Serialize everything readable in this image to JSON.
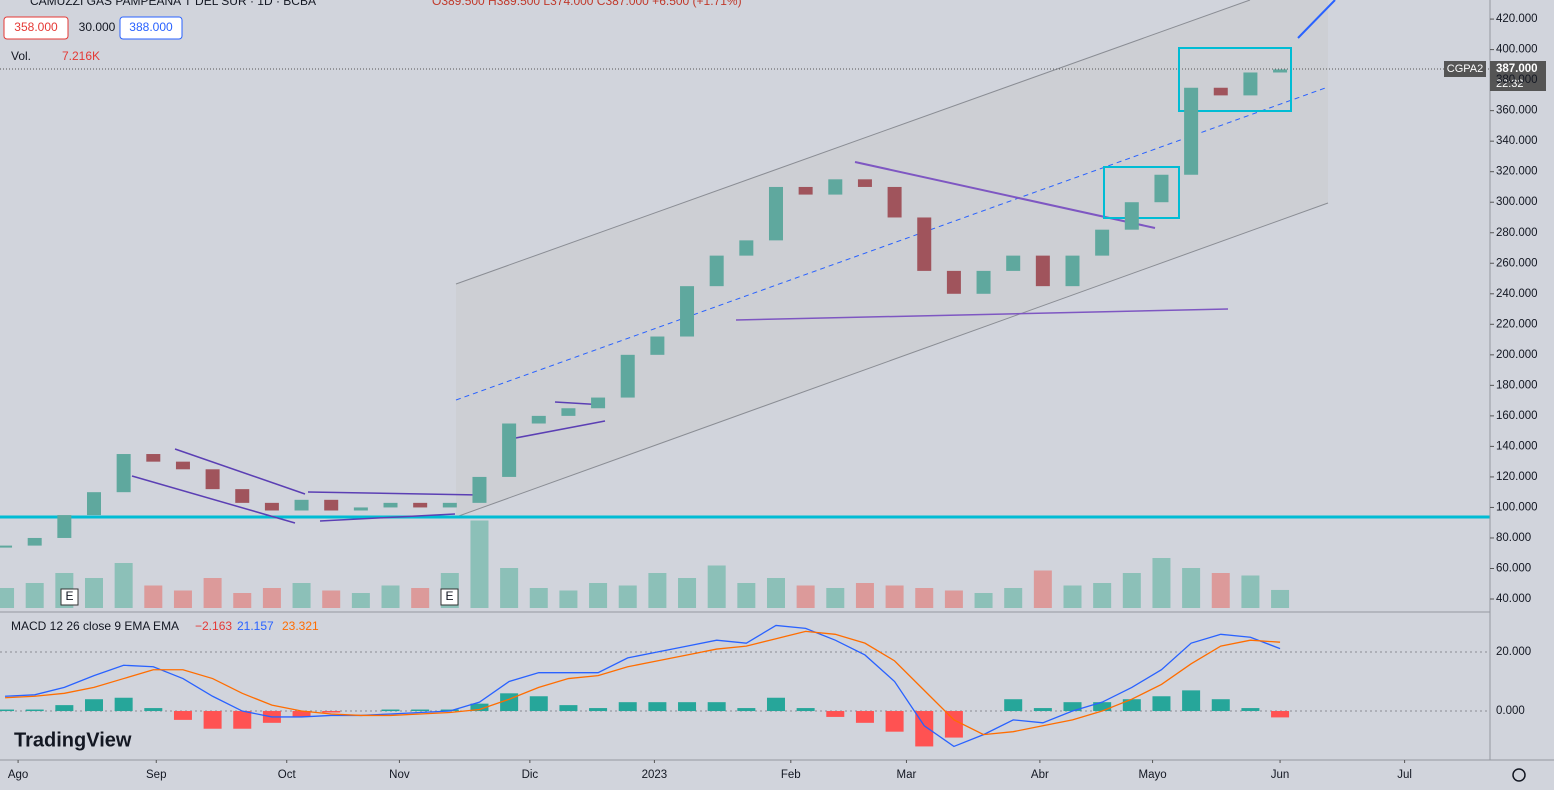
{
  "header": {
    "symbol": "CAMUZZI GAS PAMPEANA 'I' DEL SUR · 1D · BCBA",
    "ohlc": "O389.500 H389.500 L374.000 C387.000 +6.500 (+1.71%)",
    "bid": "358.000",
    "spread": "30.000",
    "ask": "388.000",
    "vol_title": "Vol.",
    "vol_value": "7.216K"
  },
  "price_tag": {
    "ticker": "CGPA2",
    "price": "387.000",
    "time": "22:32"
  },
  "macd_legend": {
    "title": "MACD 12 26 close 9 EMA EMA",
    "hist": "−2.163",
    "macd": "21.157",
    "signal": "23.321"
  },
  "earnings_markers": [
    "E",
    "E"
  ],
  "brand": "TradingView",
  "chart_data": {
    "type": "candlestick",
    "x": [
      0,
      1,
      2,
      3,
      4,
      5,
      6,
      7,
      8,
      9,
      10,
      11,
      12,
      13,
      14,
      15,
      16,
      17,
      18,
      19,
      20,
      21,
      22,
      23,
      24,
      25,
      26,
      27,
      28,
      29,
      30,
      31,
      32,
      33,
      34,
      35,
      36,
      37,
      38,
      39,
      40,
      41,
      42,
      43
    ],
    "xlim": [
      -0.17,
      50.08
    ],
    "xticks": [
      {
        "value": 0.44,
        "label": "Ago"
      },
      {
        "value": 5.1,
        "label": "Sep"
      },
      {
        "value": 9.5,
        "label": "Oct"
      },
      {
        "value": 13.3,
        "label": "Nov"
      },
      {
        "value": 17.7,
        "label": "Dic"
      },
      {
        "value": 21.9,
        "label": "2023"
      },
      {
        "value": 26.5,
        "label": "Feb"
      },
      {
        "value": 30.4,
        "label": "Mar"
      },
      {
        "value": 34.9,
        "label": "Abr"
      },
      {
        "value": 38.7,
        "label": "Mayo"
      },
      {
        "value": 43.0,
        "label": "Jun"
      },
      {
        "value": 47.2,
        "label": "Jul"
      }
    ],
    "series": [
      {
        "name": "close",
        "up_color": "#5fa89e",
        "down_color": "#a0545c",
        "values": [
          75,
          80,
          95,
          110,
          135,
          130,
          125,
          112,
          103,
          98,
          105,
          98,
          100,
          103,
          100,
          103,
          120,
          155,
          160,
          165,
          172,
          200,
          212,
          245,
          265,
          275,
          310,
          305,
          315,
          310,
          290,
          255,
          240,
          255,
          265,
          245,
          265,
          282,
          300,
          318,
          375,
          370,
          385,
          387
        ]
      },
      {
        "name": "volume",
        "up_color": "#8cc0b8",
        "down_color": "#dc9a9a",
        "values": [
          8,
          10,
          14,
          12,
          18,
          9,
          7,
          12,
          6,
          8,
          10,
          7,
          6,
          9,
          8,
          14,
          35,
          16,
          8,
          7,
          10,
          9,
          14,
          12,
          17,
          10,
          12,
          9,
          8,
          10,
          9,
          8,
          7,
          6,
          8,
          15,
          9,
          10,
          14,
          20,
          16,
          14,
          13,
          7.216
        ]
      },
      {
        "name": "macd",
        "color": "#2962ff",
        "values": [
          5,
          5.5,
          8,
          12,
          15.5,
          15,
          11,
          5,
          0,
          -2,
          -2,
          -1.5,
          -1.5,
          -1,
          -0.5,
          0,
          3,
          10,
          13,
          13,
          13,
          18,
          20,
          22,
          24,
          23,
          29,
          28,
          24,
          19,
          10,
          -5,
          -12,
          -8,
          -3,
          -4,
          0,
          3,
          8,
          14,
          23,
          26,
          25,
          21.157
        ]
      },
      {
        "name": "signal",
        "color": "#ff6d00",
        "values": [
          4.5,
          5,
          6,
          8,
          11,
          14,
          14,
          11,
          6,
          2,
          0,
          -1,
          -1.5,
          -1.5,
          -1,
          -0.5,
          0.5,
          4,
          8,
          11,
          12,
          15,
          17,
          19,
          21,
          22,
          24.5,
          27,
          26,
          23,
          17,
          7,
          -3,
          -8,
          -7,
          -5,
          -3,
          0,
          4,
          9,
          16,
          22,
          24,
          23.321
        ]
      },
      {
        "name": "histogram",
        "up_color": "#26a69a",
        "down_color": "#ff5252",
        "values": [
          0.5,
          0.5,
          2,
          4,
          4.5,
          1,
          -3,
          -6,
          -6,
          -4,
          -2,
          -0.5,
          0,
          0.5,
          0.5,
          0.5,
          2.5,
          6,
          5,
          2,
          1,
          3,
          3,
          3,
          3,
          1,
          4.5,
          1,
          -2,
          -4,
          -7,
          -12,
          -9,
          0,
          4,
          1,
          3,
          3,
          4,
          5,
          7,
          4,
          1,
          -2.163
        ]
      }
    ],
    "ylim": [
      32.8,
      432.5
    ],
    "yticks": [
      {
        "value": 40,
        "label": "40.000"
      },
      {
        "value": 60,
        "label": "60.000"
      },
      {
        "value": 80,
        "label": "80.000"
      },
      {
        "value": 100,
        "label": "100.000"
      },
      {
        "value": 120,
        "label": "120.000"
      },
      {
        "value": 140,
        "label": "140.000"
      },
      {
        "value": 160,
        "label": "160.000"
      },
      {
        "value": 180,
        "label": "180.000"
      },
      {
        "value": 200,
        "label": "200.000"
      },
      {
        "value": 220,
        "label": "220.000"
      },
      {
        "value": 240,
        "label": "240.000"
      },
      {
        "value": 260,
        "label": "260.000"
      },
      {
        "value": 280,
        "label": "280.000"
      },
      {
        "value": 300,
        "label": "300.000"
      },
      {
        "value": 320,
        "label": "320.000"
      },
      {
        "value": 340,
        "label": "340.000"
      },
      {
        "value": 360,
        "label": "360.000"
      },
      {
        "value": 380,
        "label": "380.000"
      },
      {
        "value": 400,
        "label": "400.000"
      },
      {
        "value": 420,
        "label": "420.000"
      }
    ],
    "vlim": [
      0,
      40
    ],
    "y2lim": [
      -16.6,
      33.56
    ],
    "y2ticks": [
      {
        "value": 0,
        "label": "0.000"
      },
      {
        "value": 20,
        "label": "20.000"
      }
    ]
  }
}
